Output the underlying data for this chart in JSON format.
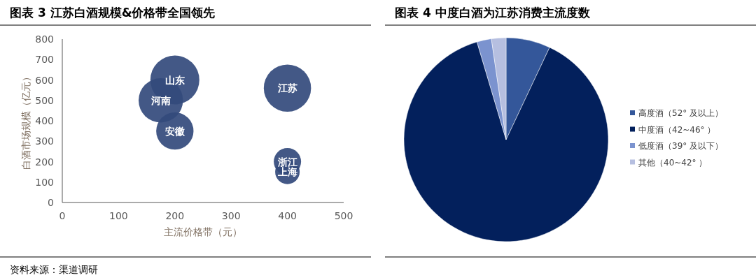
{
  "chart_data": [
    {
      "type": "bubble",
      "title": "图表 3 江苏白酒规模&价格带全国领先",
      "xlabel": "主流价格带（元）",
      "ylabel": "白酒市场规模（亿元）",
      "xlim": [
        0,
        500
      ],
      "xticks": [
        0,
        100,
        200,
        300,
        400,
        500
      ],
      "ylim": [
        0,
        800
      ],
      "yticks": [
        0,
        100,
        200,
        300,
        400,
        500,
        600,
        700,
        800
      ],
      "grid": false,
      "series": [
        {
          "color": "#334a7c",
          "x": [
            200,
            175,
            200,
            400,
            400,
            400
          ],
          "values": [
            600,
            500,
            350,
            560,
            200,
            150
          ],
          "sizes": [
            1,
            0.82,
            0.58,
            0.93,
            0.31,
            0.25
          ]
        }
      ],
      "annotations": [
        {
          "text": "山东",
          "x": 200,
          "y": 600
        },
        {
          "text": "河南",
          "x": 175,
          "y": 500
        },
        {
          "text": "安徽",
          "x": 200,
          "y": 350
        },
        {
          "text": "江苏",
          "x": 400,
          "y": 560
        },
        {
          "text": "浙江",
          "x": 400,
          "y": 200
        },
        {
          "text": "上海",
          "x": 400,
          "y": 150
        },
        "资料来源：渠道调研"
      ]
    },
    {
      "type": "pie",
      "title": "图表 4 中度白酒为江苏消费主流度数",
      "legend": "right",
      "categories": [
        "高度酒（52° 及以上）",
        "中度酒（42~46° ）",
        "低度酒（39° 及以下）",
        "其他（40~42° ）"
      ],
      "values": [
        7,
        88.4,
        2.3,
        2.3
      ],
      "colors": [
        "#34579a",
        "#03205c",
        "#7b93cf",
        "#b6bfe0"
      ]
    }
  ]
}
